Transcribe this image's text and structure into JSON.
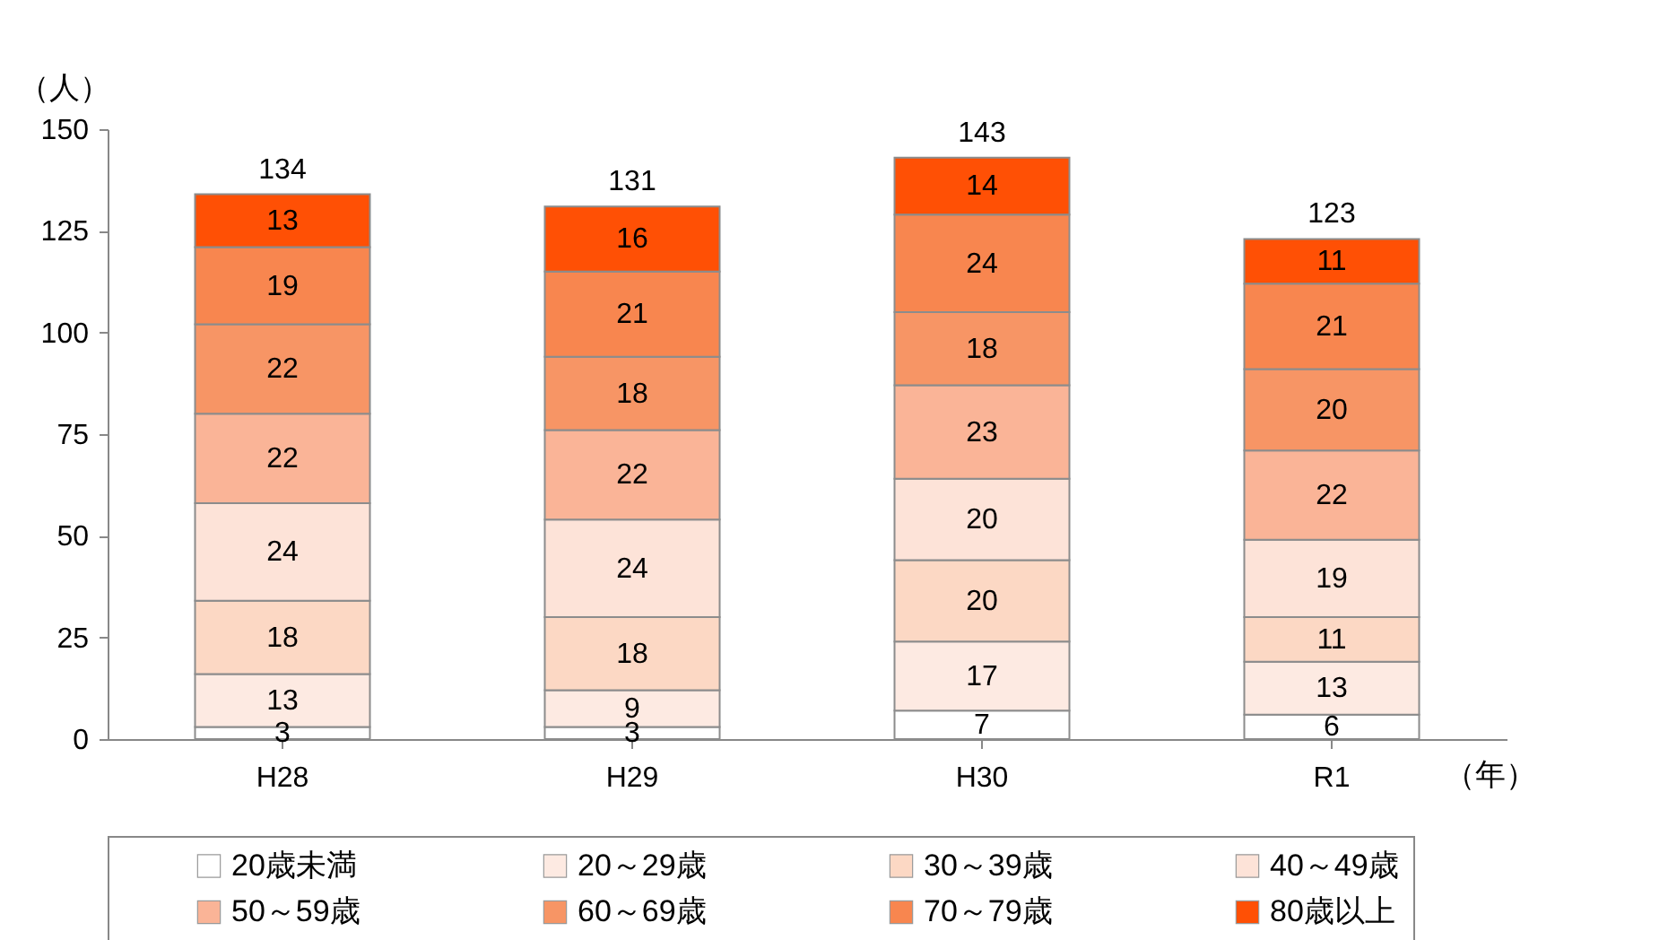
{
  "chart_data": {
    "type": "bar",
    "stacked": true,
    "ylabel": "（人）",
    "xlabel": "（年）",
    "categories": [
      "H28",
      "H29",
      "H30",
      "R1"
    ],
    "series": [
      {
        "name": "20歳未満",
        "color": "#ffffff",
        "values": [
          3,
          3,
          7,
          6
        ]
      },
      {
        "name": "20～29歳",
        "color": "#fdeae2",
        "values": [
          13,
          9,
          17,
          13
        ]
      },
      {
        "name": "30～39歳",
        "color": "#fcd8c4",
        "values": [
          18,
          18,
          20,
          11
        ]
      },
      {
        "name": "40～49歳",
        "color": "#fde3d8",
        "values": [
          24,
          24,
          20,
          19
        ]
      },
      {
        "name": "50～59歳",
        "color": "#fab497",
        "values": [
          22,
          22,
          23,
          22
        ]
      },
      {
        "name": "60～69歳",
        "color": "#f79565",
        "values": [
          22,
          18,
          18,
          20
        ]
      },
      {
        "name": "70～79歳",
        "color": "#f8864f",
        "values": [
          19,
          21,
          24,
          21
        ]
      },
      {
        "name": "80歳以上",
        "color": "#ff5005",
        "values": [
          13,
          16,
          14,
          11
        ]
      }
    ],
    "totals": [
      "134",
      "131",
      "143",
      "123"
    ],
    "data_labels": true,
    "ylim": [
      0,
      150
    ],
    "yticks": [
      0,
      25,
      50,
      75,
      100,
      125,
      150
    ],
    "grid": false,
    "legend": "bottom"
  }
}
